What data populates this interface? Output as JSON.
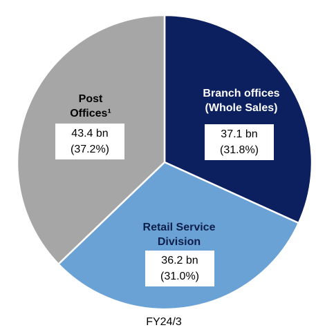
{
  "chart_data": {
    "type": "pie",
    "title": "FY24/3",
    "categories": [
      [
        "Branch offices",
        "(Whole Sales)"
      ],
      [
        "Retail Service",
        "Division"
      ],
      [
        "Post",
        "Offices¹"
      ]
    ],
    "values": [
      37.1,
      36.2,
      43.4
    ],
    "value_labels": [
      "37.1 bn",
      "36.2 bn",
      "43.4 bn"
    ],
    "percentages": [
      31.8,
      31.0,
      37.2
    ],
    "percentage_labels": [
      "(31.8%)",
      "(31.0%)",
      "(37.2%)"
    ],
    "colors": [
      "#0c1f5e",
      "#6ba2d6",
      "#a6a6a6"
    ]
  }
}
